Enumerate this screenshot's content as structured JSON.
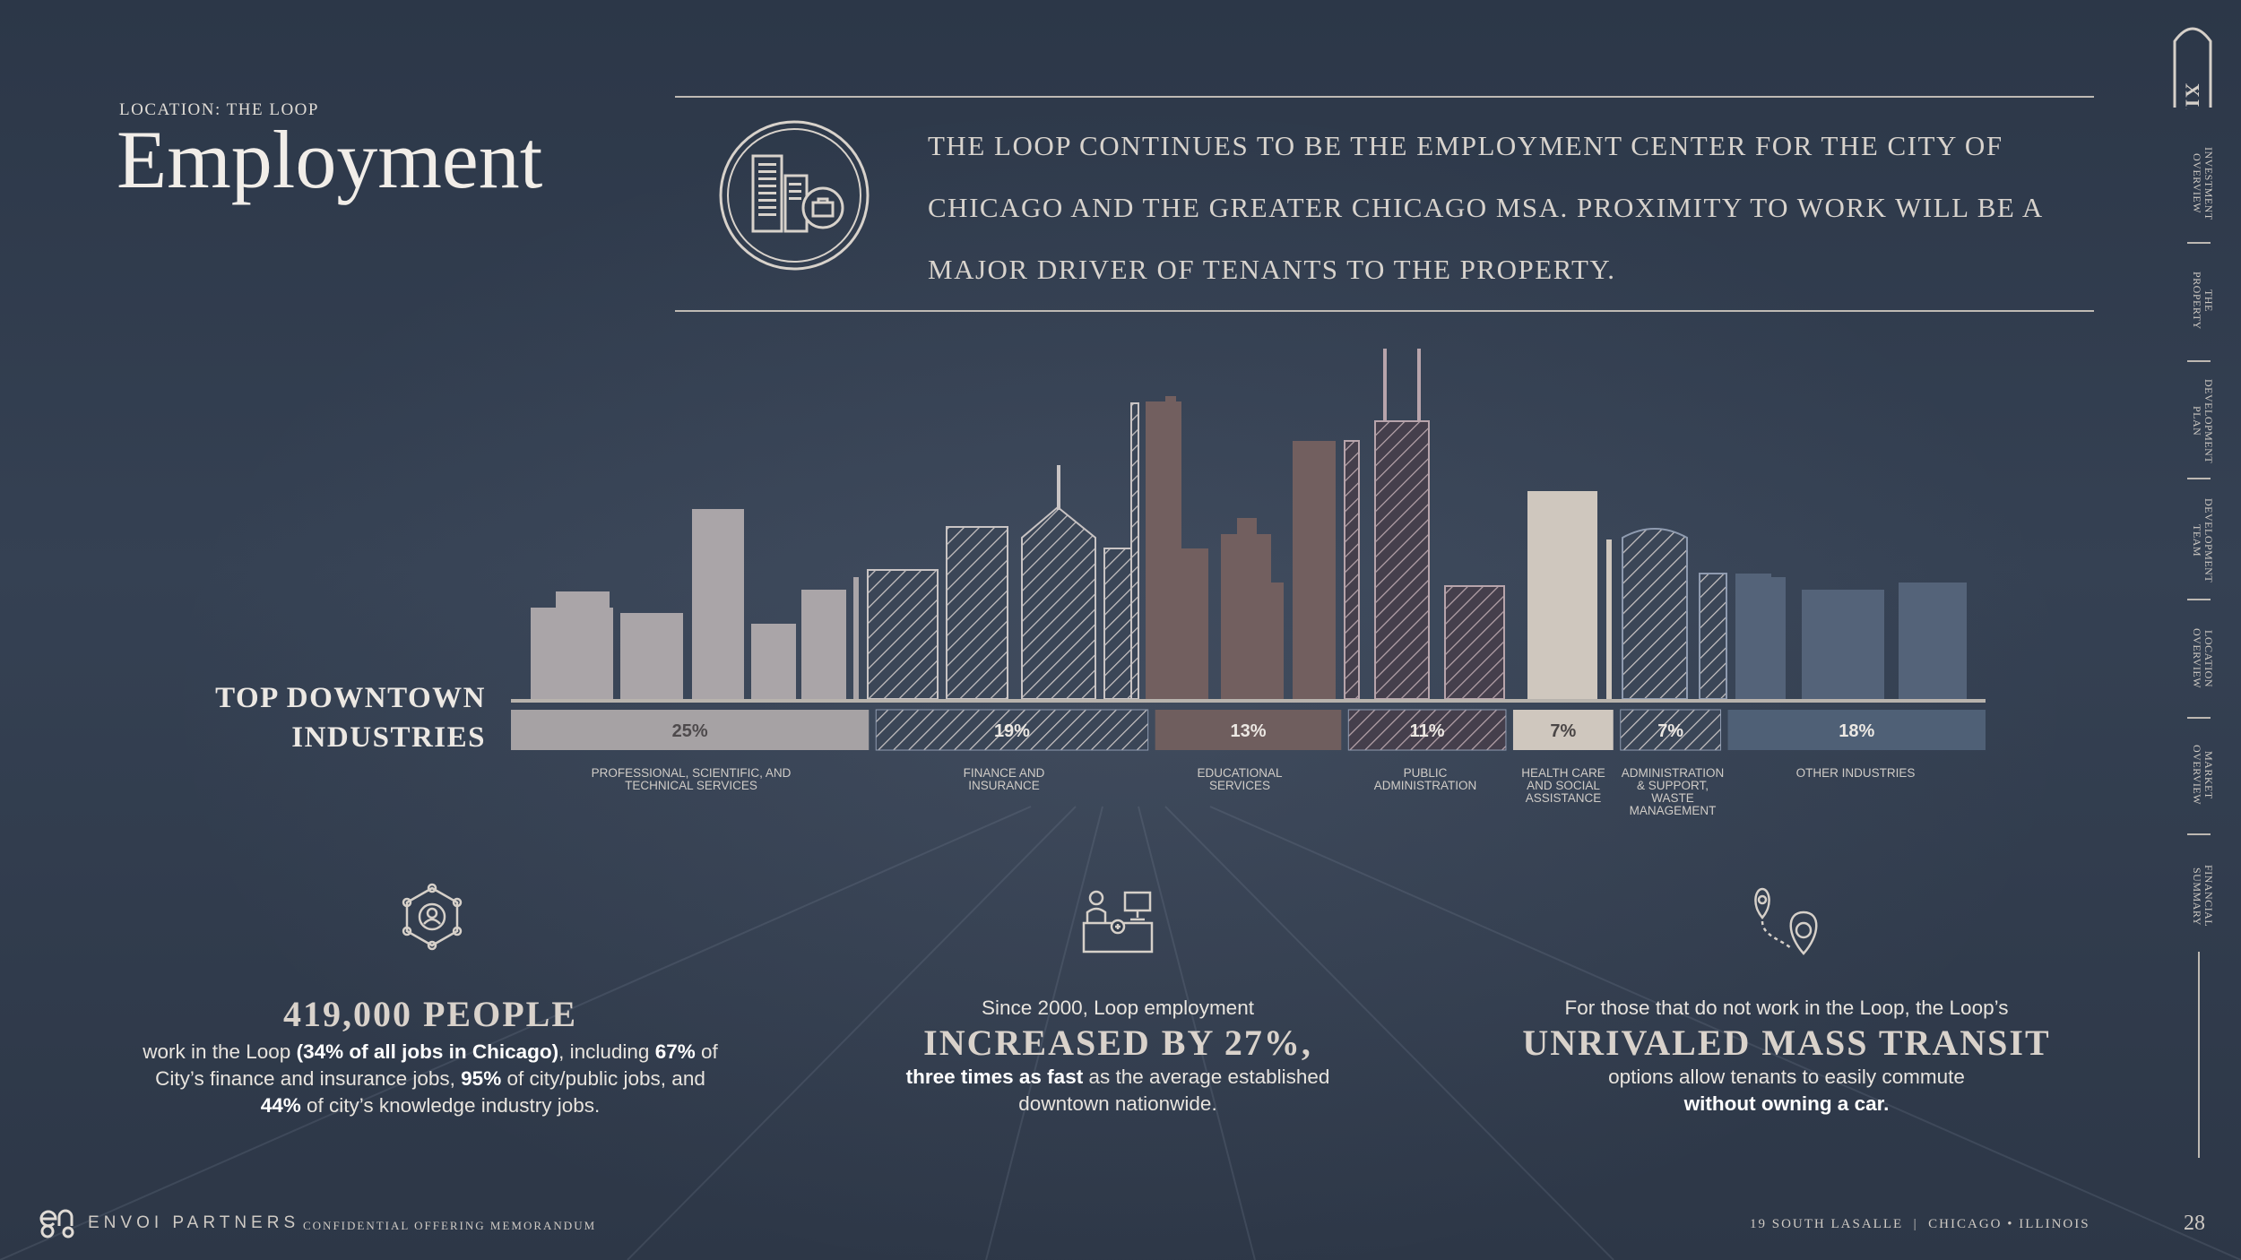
{
  "header": {
    "eyebrow": "LOCATION: THE LOOP",
    "title": "Employment",
    "intro": "THE LOOP CONTINUES TO BE THE EMPLOYMENT CENTER FOR THE CITY OF CHICAGO AND THE GREATER CHICAGO MSA. PROXIMITY TO WORK WILL BE A MAJOR DRIVER OF TENANTS TO THE PROPERTY."
  },
  "chart_heading_line1": "TOP DOWNTOWN",
  "chart_heading_line2": "INDUSTRIES",
  "chart_data": {
    "type": "bar",
    "categories": [
      "PROFESSIONAL, SCIENTIFIC, AND TECHNICAL SERVICES",
      "FINANCE AND INSURANCE",
      "EDUCATIONAL SERVICES",
      "PUBLIC ADMINISTRATION",
      "HEALTH CARE AND SOCIAL ASSISTANCE",
      "ADMINISTRATION & SUPPORT, WASTE MANAGEMENT",
      "OTHER INDUSTRIES"
    ],
    "labels": [
      "25%",
      "19%",
      "13%",
      "11%",
      "7%",
      "7%",
      "18%"
    ],
    "values": [
      25,
      19,
      13,
      11,
      7,
      7,
      18
    ],
    "colors": [
      "#a6a2a4",
      "#3f4a5b",
      "#6f5e5e",
      "#4d4752",
      "#cfc7be",
      "#3f4a5b",
      "#4f6076"
    ],
    "patterns": [
      "solid",
      "hatch",
      "solid",
      "hatch",
      "solid",
      "hatch",
      "solid"
    ]
  },
  "stats": [
    {
      "headline": "419,000 PEOPLE",
      "line1_pre": "work in the Loop ",
      "line1_bold": "(34% of all jobs in Chicago)",
      "line1_post": ", including ",
      "line1_bold2": "67%",
      "line1_post2": " of",
      "line2_pre": "City’s finance and insurance jobs, ",
      "line2_bold": "95%",
      "line2_post": " of city/public jobs, and",
      "line3_bold": "44%",
      "line3_post": " of city’s knowledge industry jobs."
    },
    {
      "intro": "Since 2000, Loop employment",
      "headline": "INCREASED BY 27%,",
      "line1_bold": "three times as fast",
      "line1_post": " as the average established",
      "line2": "downtown nationwide."
    },
    {
      "intro": "For those that do not work in the Loop, the Loop’s",
      "headline": "UNRIVALED MASS TRANSIT",
      "line1": "options allow tenants to easily commute",
      "line2_bold": "without owning a car."
    }
  ],
  "nav": [
    "INVESTMENT OVERVIEW",
    "THE PROPERTY",
    "DEVELOPMENT PLAN",
    "DEVELOPMENT TEAM",
    "LOCATION OVERVIEW",
    "MARKET OVERVIEW",
    "FINANCIAL SUMMARY"
  ],
  "logo_mark": "XIX",
  "footer": {
    "brand": "ENVOI PARTNERS",
    "memo": "CONFIDENTIAL OFFERING MEMORANDUM",
    "address": "19 SOUTH LASALLE  |  CHICAGO • ILLINOIS",
    "page": "28"
  }
}
